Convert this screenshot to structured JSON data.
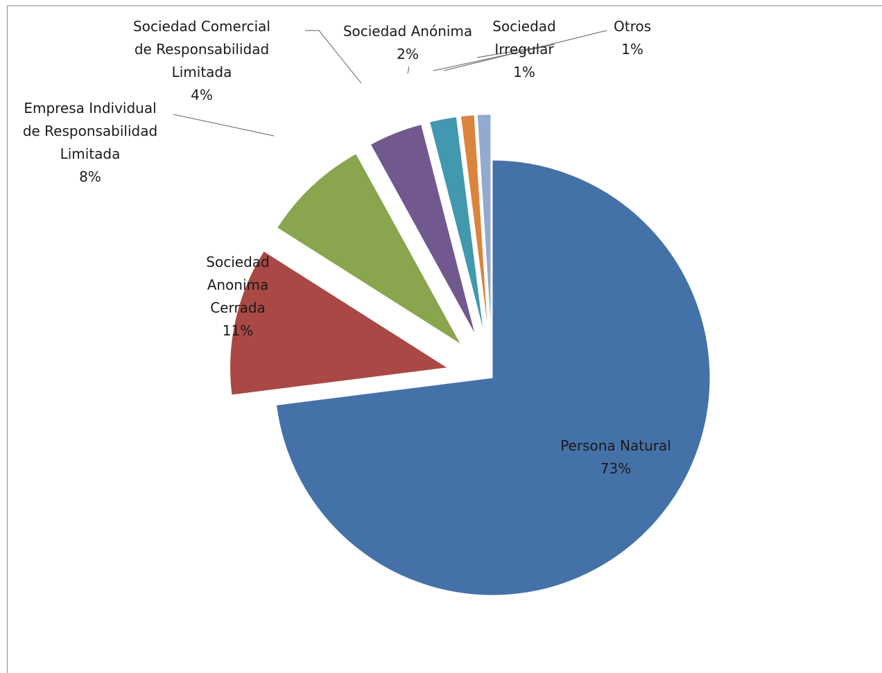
{
  "chart_data": {
    "type": "pie",
    "title": "",
    "legend": "none",
    "slices": [
      {
        "label_lines": [
          "Persona Natural"
        ],
        "percent_label": "73%",
        "value": 73,
        "color": "#4472A8"
      },
      {
        "label_lines": [
          "Sociedad",
          "Anonima",
          "Cerrada"
        ],
        "percent_label": "11%",
        "value": 11,
        "color": "#A94844"
      },
      {
        "label_lines": [
          "Empresa Individual",
          "de Responsabilidad",
          "Limitada"
        ],
        "percent_label": "8%",
        "value": 8,
        "color": "#89A54E"
      },
      {
        "label_lines": [
          "Sociedad Comercial",
          "de Responsabilidad",
          "Limitada"
        ],
        "percent_label": "4%",
        "value": 4,
        "color": "#71588F"
      },
      {
        "label_lines": [
          "Sociedad Anónima"
        ],
        "percent_label": "2%",
        "value": 2,
        "color": "#4198AF"
      },
      {
        "label_lines": [
          "Sociedad",
          "Irregular"
        ],
        "percent_label": "1%",
        "value": 1,
        "color": "#DB843D"
      },
      {
        "label_lines": [
          "Otros"
        ],
        "percent_label": "1%",
        "value": 1,
        "color": "#93A9CF"
      }
    ]
  }
}
